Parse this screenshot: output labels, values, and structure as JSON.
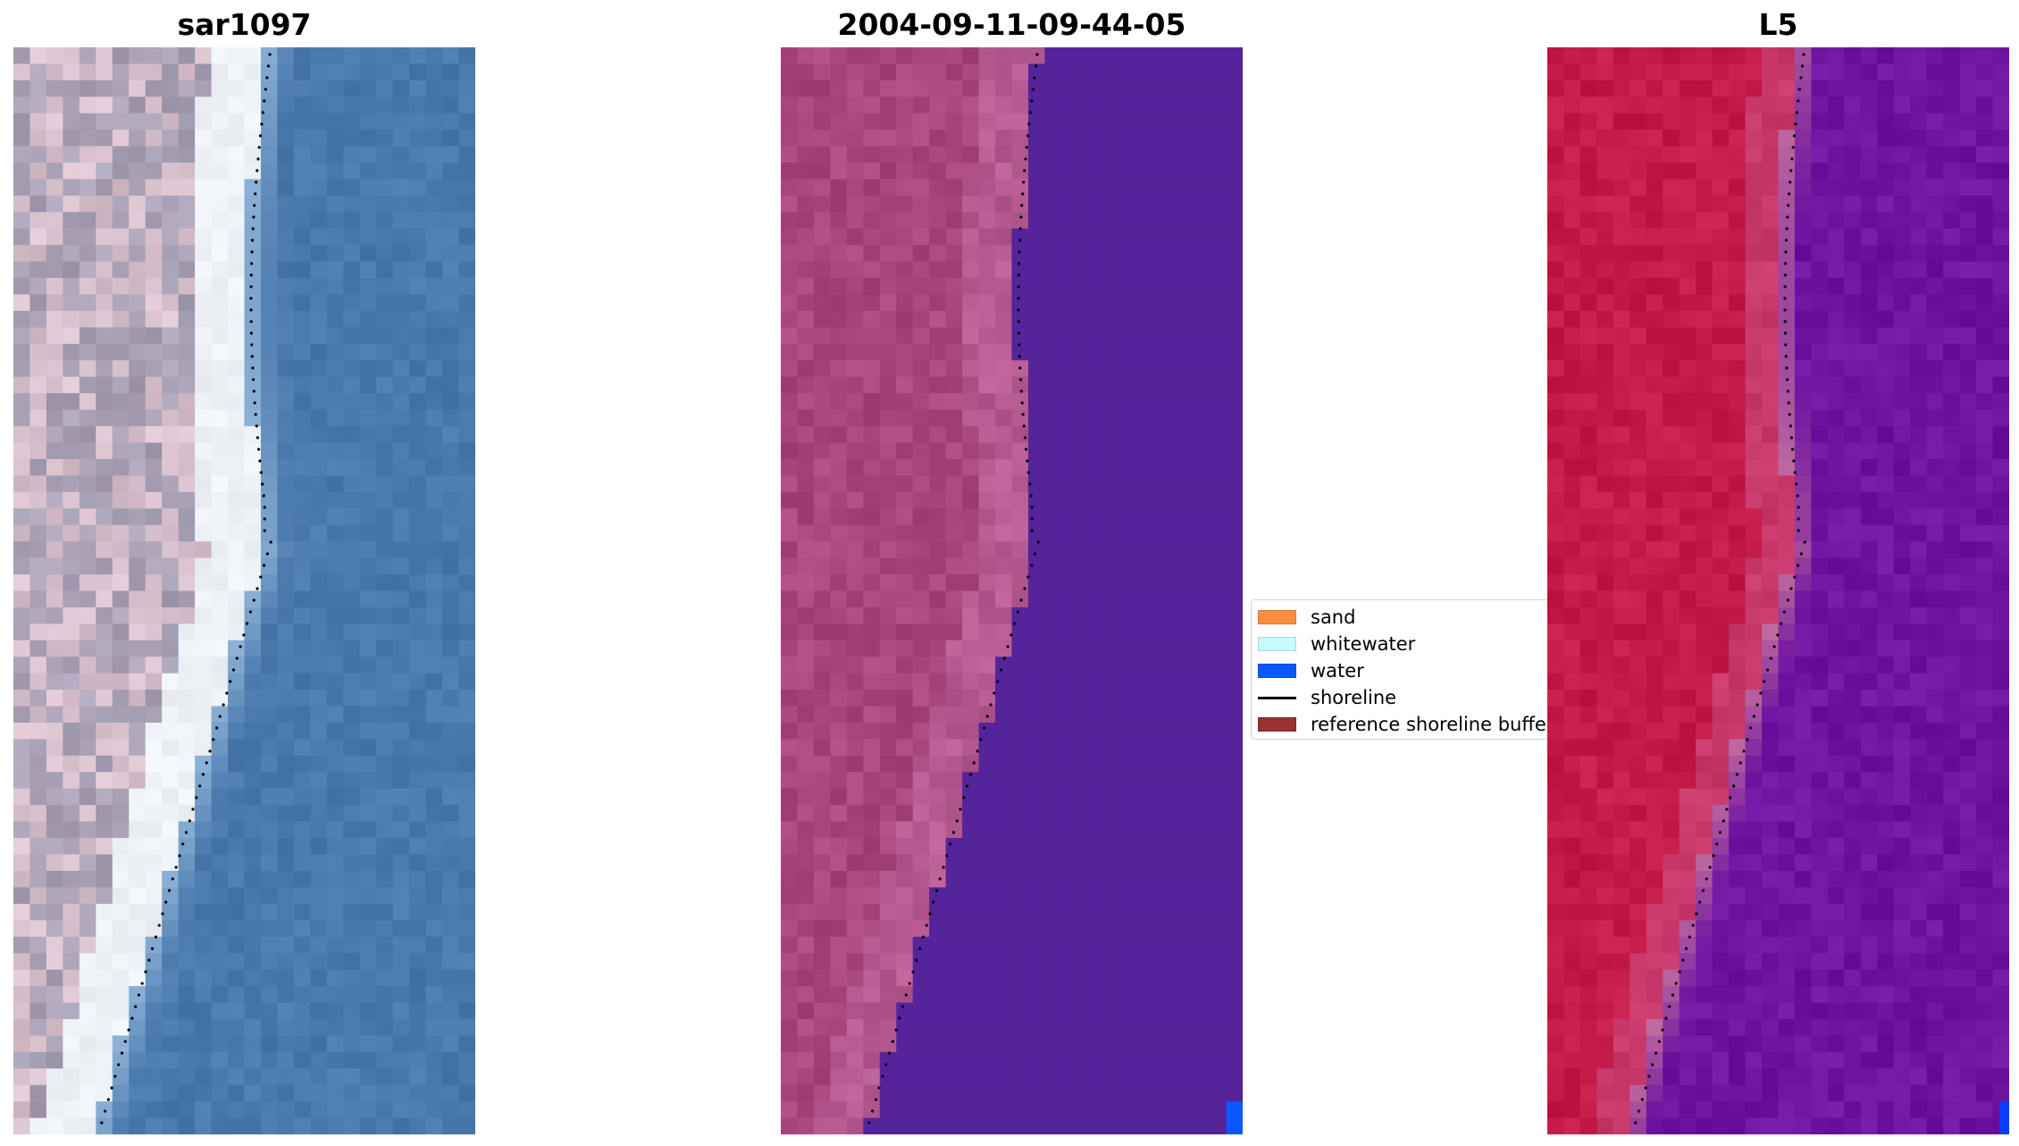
{
  "panels": [
    {
      "title": "sar1097",
      "style": "rgb"
    },
    {
      "title": "2004-09-11-09-44-05",
      "style": "classified"
    },
    {
      "title": "L5",
      "style": "index"
    }
  ],
  "legend": {
    "items": [
      {
        "label": "sand",
        "kind": "patch",
        "color": "#ff8c3a"
      },
      {
        "label": "whitewater",
        "kind": "patch",
        "color": "#c8fbfb"
      },
      {
        "label": "water",
        "kind": "patch",
        "color": "#0a57ff"
      },
      {
        "label": "shoreline",
        "kind": "line",
        "color": "#000000"
      },
      {
        "label": "reference shoreline buffer",
        "kind": "patch",
        "color": "#9b3035"
      }
    ]
  },
  "colors": {
    "sea_blue": "#4a79ad",
    "surf_white": "#eef1f6",
    "land_grey": "#a8a0b4",
    "classified_land": "#a8477e",
    "classified_water": "#55239a",
    "index_land": "#c41a48",
    "index_water": "#6e14a0",
    "shoreline_dots": "#000000"
  }
}
